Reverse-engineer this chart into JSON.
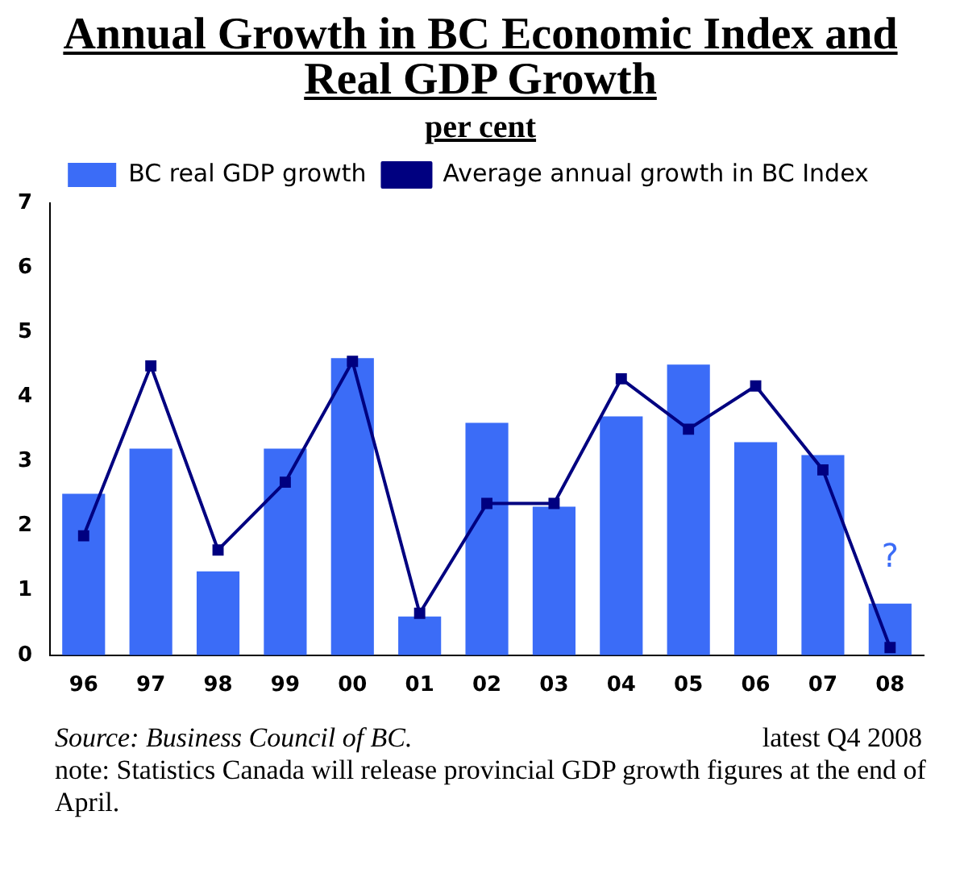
{
  "chart_data": {
    "type": "bar",
    "title": "Annual Growth in BC Economic Index and Real GDP Growth",
    "subtitle": "per cent",
    "categories": [
      "96",
      "97",
      "98",
      "99",
      "00",
      "01",
      "02",
      "03",
      "04",
      "05",
      "06",
      "07",
      "08"
    ],
    "series": [
      {
        "name": "BC real GDP growth",
        "color": "#3b6cf7",
        "values": [
          2.5,
          3.2,
          1.3,
          3.2,
          4.6,
          0.6,
          3.6,
          2.3,
          3.7,
          4.5,
          3.3,
          3.1,
          0.8
        ]
      },
      {
        "name": "Average annual growth in BC Index",
        "type": "line",
        "color": "#000080",
        "marker": "square",
        "values": [
          1.85,
          4.48,
          1.63,
          2.68,
          4.55,
          0.65,
          2.35,
          2.35,
          4.28,
          3.5,
          4.17,
          2.87,
          0.12
        ]
      }
    ],
    "ylim": [
      0,
      7
    ],
    "yticks": [
      0,
      1,
      2,
      3,
      4,
      5,
      6,
      7
    ],
    "grid": false,
    "legend": "top",
    "annotations": [
      "?",
      "Source:  Business Council of BC.",
      "latest Q4 2008",
      "note: Statistics Canada will release provincial GDP growth figures at the end of April."
    ]
  }
}
